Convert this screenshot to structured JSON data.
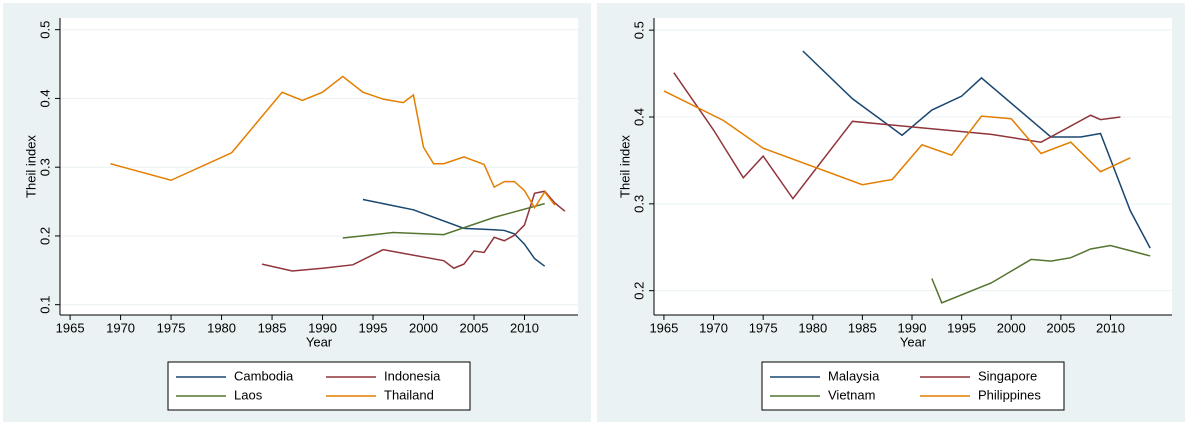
{
  "chart_data": [
    {
      "type": "line",
      "x_label": "Year",
      "y_label": "Theil index",
      "xlim": [
        1964,
        2015.3
      ],
      "ylim": [
        0.085,
        0.517
      ],
      "xticks": [
        1965,
        1970,
        1975,
        1980,
        1985,
        1990,
        1995,
        2000,
        2005,
        2010
      ],
      "yticks": [
        0.1,
        0.2,
        0.3,
        0.4,
        0.5
      ],
      "grid": true,
      "series": [
        {
          "name": "Cambodia",
          "color": "#1a476f",
          "x": [
            1994,
            1999,
            2004,
            2007,
            2008,
            2009,
            2010,
            2011,
            2012
          ],
          "values": [
            0.253,
            0.238,
            0.211,
            0.209,
            0.208,
            0.203,
            0.188,
            0.167,
            0.156
          ]
        },
        {
          "name": "Indonesia",
          "color": "#90353b",
          "x": [
            1984,
            1987,
            1990,
            1993,
            1996,
            2002,
            2003,
            2004,
            2005,
            2006,
            2007,
            2008,
            2009,
            2010,
            2011,
            2012,
            2013,
            2014
          ],
          "values": [
            0.159,
            0.149,
            0.153,
            0.158,
            0.18,
            0.164,
            0.153,
            0.159,
            0.178,
            0.176,
            0.198,
            0.193,
            0.201,
            0.216,
            0.262,
            0.265,
            0.248,
            0.236
          ]
        },
        {
          "name": "Laos",
          "color": "#55752f",
          "x": [
            1992,
            1997,
            2002,
            2007,
            2012
          ],
          "values": [
            0.197,
            0.205,
            0.202,
            0.227,
            0.247
          ]
        },
        {
          "name": "Thailand",
          "color": "#e37e00",
          "x": [
            1969,
            1975,
            1981,
            1986,
            1988,
            1990,
            1992,
            1994,
            1996,
            1998,
            1999,
            2000,
            2001,
            2002,
            2004,
            2006,
            2007,
            2008,
            2009,
            2010,
            2011,
            2012,
            2013
          ],
          "values": [
            0.305,
            0.281,
            0.321,
            0.409,
            0.397,
            0.409,
            0.432,
            0.409,
            0.399,
            0.394,
            0.405,
            0.329,
            0.305,
            0.305,
            0.315,
            0.304,
            0.271,
            0.279,
            0.279,
            0.266,
            0.241,
            0.264,
            0.245
          ]
        }
      ]
    },
    {
      "type": "line",
      "x_label": "Year",
      "y_label": "Theil index",
      "xlim": [
        1964,
        2016.2
      ],
      "ylim": [
        0.172,
        0.514
      ],
      "xticks": [
        1965,
        1970,
        1975,
        1980,
        1985,
        1990,
        1995,
        2000,
        2005,
        2010
      ],
      "yticks": [
        0.2,
        0.3,
        0.4,
        0.5
      ],
      "grid": true,
      "series": [
        {
          "name": "Malaysia",
          "color": "#1a476f",
          "x": [
            1979,
            1984,
            1989,
            1992,
            1995,
            1997,
            2004,
            2007,
            2009,
            2012,
            2014
          ],
          "values": [
            0.476,
            0.421,
            0.379,
            0.408,
            0.424,
            0.445,
            0.377,
            0.377,
            0.381,
            0.292,
            0.249
          ]
        },
        {
          "name": "Singapore",
          "color": "#90353b",
          "x": [
            1966,
            1970,
            1973,
            1975,
            1978,
            1984,
            1998,
            2003,
            2008,
            2009,
            2011
          ],
          "values": [
            0.451,
            0.385,
            0.33,
            0.355,
            0.306,
            0.395,
            0.38,
            0.371,
            0.402,
            0.397,
            0.4
          ]
        },
        {
          "name": "Vietnam",
          "color": "#55752f",
          "x": [
            1992,
            1993,
            1998,
            2002,
            2004,
            2006,
            2008,
            2010,
            2014
          ],
          "values": [
            0.214,
            0.186,
            0.209,
            0.236,
            0.234,
            0.238,
            0.248,
            0.252,
            0.24
          ]
        },
        {
          "name": "Philippines",
          "color": "#e37e00",
          "x": [
            1965,
            1971,
            1975,
            1985,
            1988,
            1991,
            1994,
            1997,
            2000,
            2003,
            2006,
            2009,
            2012
          ],
          "values": [
            0.43,
            0.396,
            0.364,
            0.322,
            0.328,
            0.368,
            0.356,
            0.401,
            0.398,
            0.358,
            0.371,
            0.337,
            0.353
          ]
        }
      ]
    }
  ]
}
